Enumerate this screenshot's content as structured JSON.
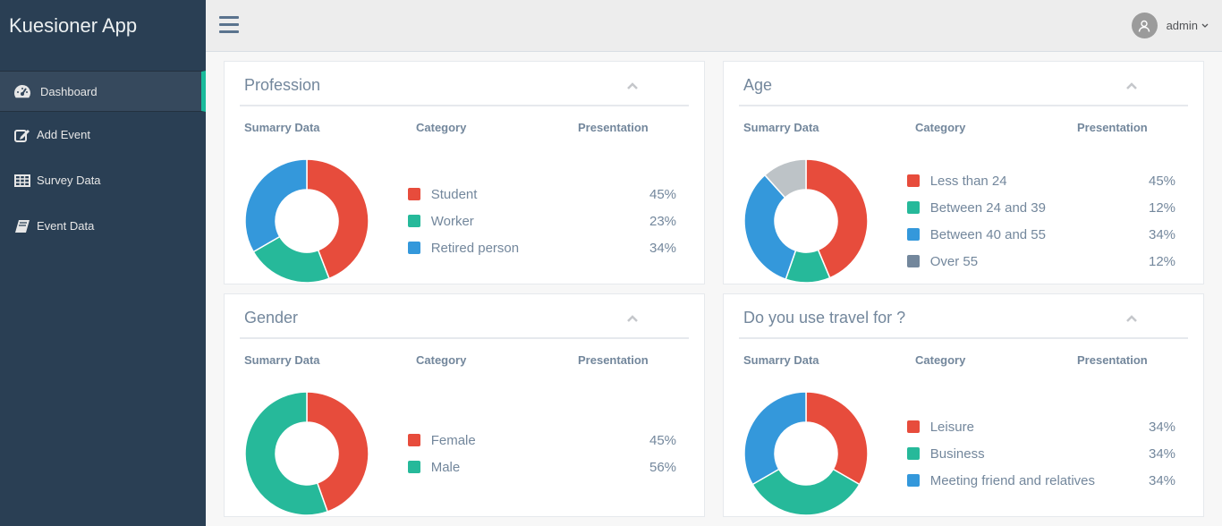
{
  "brand": "Kuesioner App",
  "nav": [
    {
      "label": "Dashboard",
      "icon": "dashboard-icon"
    },
    {
      "label": "Add Event",
      "icon": "edit-icon"
    },
    {
      "label": "Survey Data",
      "icon": "table-icon"
    },
    {
      "label": "Event Data",
      "icon": "book-icon"
    }
  ],
  "user": {
    "name": "admin"
  },
  "colors": {
    "red": "#e74c3c",
    "green": "#26b99a",
    "blue": "#3498db",
    "slate": "#73879c",
    "gray": "#bdc3c7"
  },
  "columns": {
    "summary": "Sumarry Data",
    "category": "Category",
    "presentation": "Presentation"
  },
  "panels": [
    {
      "title": "Profession",
      "items": [
        {
          "label": "Student",
          "pct": "45%",
          "color": "#e74c3c"
        },
        {
          "label": "Worker",
          "pct": "23%",
          "color": "#26b99a"
        },
        {
          "label": "Retired person",
          "pct": "34%",
          "color": "#3498db"
        }
      ],
      "chart": [
        {
          "value": 45,
          "color": "#e74c3c"
        },
        {
          "value": 23,
          "color": "#26b99a"
        },
        {
          "value": 34,
          "color": "#3498db"
        }
      ]
    },
    {
      "title": "Age",
      "items": [
        {
          "label": "Less than 24",
          "pct": "45%",
          "color": "#e74c3c"
        },
        {
          "label": "Between 24 and 39",
          "pct": "12%",
          "color": "#26b99a"
        },
        {
          "label": "Between 40 and 55",
          "pct": "34%",
          "color": "#3498db"
        },
        {
          "label": "Over 55",
          "pct": "12%",
          "color": "#73879c"
        }
      ],
      "chart": [
        {
          "value": 45,
          "color": "#e74c3c"
        },
        {
          "value": 12,
          "color": "#26b99a"
        },
        {
          "value": 34,
          "color": "#3498db"
        },
        {
          "value": 12,
          "color": "#bdc3c7"
        }
      ]
    },
    {
      "title": "Gender",
      "items": [
        {
          "label": "Female",
          "pct": "45%",
          "color": "#e74c3c"
        },
        {
          "label": "Male",
          "pct": "56%",
          "color": "#26b99a"
        }
      ],
      "chart": [
        {
          "value": 45,
          "color": "#e74c3c"
        },
        {
          "value": 56,
          "color": "#26b99a"
        }
      ]
    },
    {
      "title": "Do you use travel for ?",
      "items": [
        {
          "label": "Leisure",
          "pct": "34%",
          "color": "#e74c3c"
        },
        {
          "label": "Business",
          "pct": "34%",
          "color": "#26b99a"
        },
        {
          "label": "Meeting friend and relatives",
          "pct": "34%",
          "color": "#3498db"
        }
      ],
      "chart": [
        {
          "value": 34,
          "color": "#e74c3c"
        },
        {
          "value": 34,
          "color": "#26b99a"
        },
        {
          "value": 34,
          "color": "#3498db"
        }
      ]
    }
  ]
}
